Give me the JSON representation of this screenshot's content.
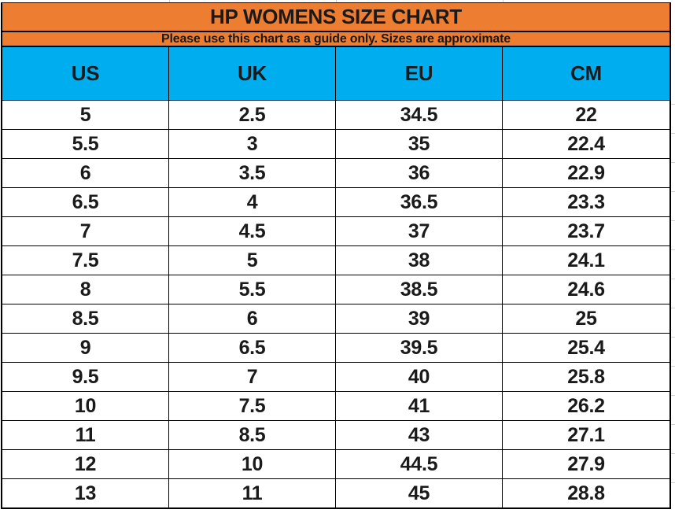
{
  "header": {
    "title": "HP WOMENS SIZE CHART",
    "subtitle": "Please use this chart as a guide only. Sizes are approximate"
  },
  "colors": {
    "orange": "#ED7D31",
    "blue": "#00AEEF",
    "border": "#000000",
    "text": "#1A1A1A",
    "gridline": "#D0D0D0"
  },
  "chart_data": {
    "type": "table",
    "title": "HP WOMENS SIZE CHART",
    "subtitle": "Please use this chart as a guide only. Sizes are approximate",
    "columns": [
      "US",
      "UK",
      "EU",
      "CM"
    ],
    "rows": [
      [
        "5",
        "2.5",
        "34.5",
        "22"
      ],
      [
        "5.5",
        "3",
        "35",
        "22.4"
      ],
      [
        "6",
        "3.5",
        "36",
        "22.9"
      ],
      [
        "6.5",
        "4",
        "36.5",
        "23.3"
      ],
      [
        "7",
        "4.5",
        "37",
        "23.7"
      ],
      [
        "7.5",
        "5",
        "38",
        "24.1"
      ],
      [
        "8",
        "5.5",
        "38.5",
        "24.6"
      ],
      [
        "8.5",
        "6",
        "39",
        "25"
      ],
      [
        "9",
        "6.5",
        "39.5",
        "25.4"
      ],
      [
        "9.5",
        "7",
        "40",
        "25.8"
      ],
      [
        "10",
        "7.5",
        "41",
        "26.2"
      ],
      [
        "11",
        "8.5",
        "43",
        "27.1"
      ],
      [
        "12",
        "10",
        "44.5",
        "27.9"
      ],
      [
        "13",
        "11",
        "45",
        "28.8"
      ]
    ]
  }
}
